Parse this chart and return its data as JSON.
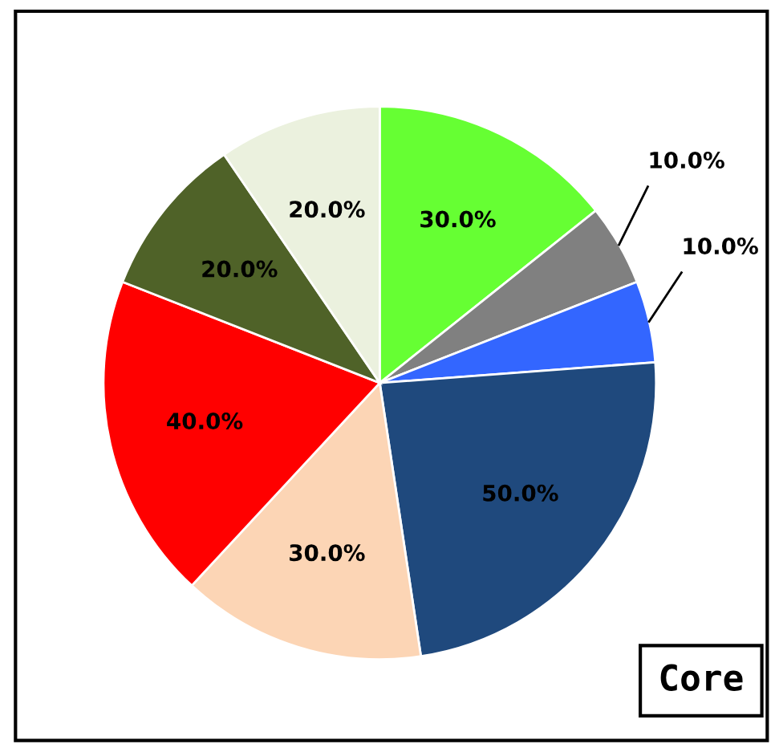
{
  "chart_data": {
    "type": "pie",
    "categories": [
      null,
      null,
      null,
      null,
      null,
      null,
      null,
      null
    ],
    "values": [
      30,
      10,
      10,
      50,
      30,
      40,
      20,
      20
    ],
    "value_labels": [
      "30.0%",
      "10.0%",
      "10.0%",
      "50.0%",
      "30.0%",
      "40.0%",
      "20.0%",
      "20.0%"
    ],
    "colors": [
      "#66ff33",
      "#808080",
      "#3366ff",
      "#1f497d",
      "#fcd5b5",
      "#ff0000",
      "#4f6228",
      "#ebf1de"
    ],
    "legend": false,
    "annotations": [
      "Core"
    ]
  }
}
